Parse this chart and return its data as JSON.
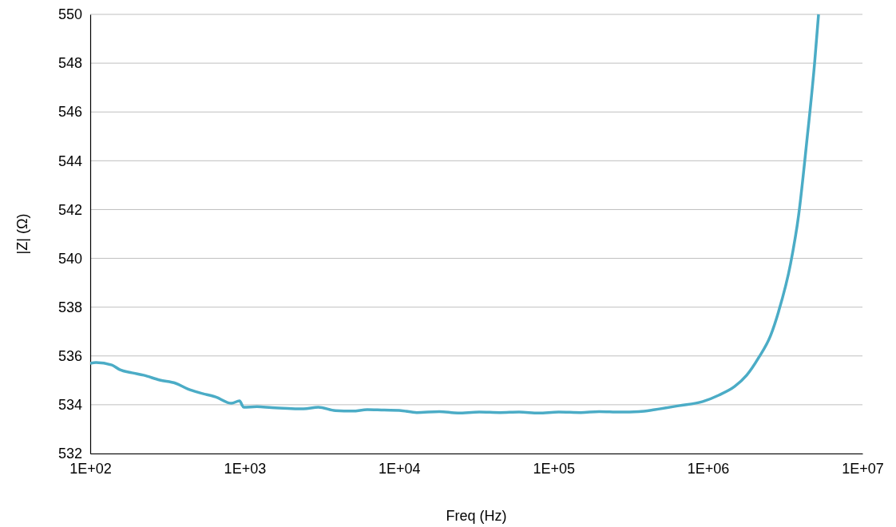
{
  "chart_data": {
    "type": "line",
    "xlabel": "Freq (Hz)",
    "ylabel": "|Z| (Ω)",
    "log": "x",
    "grid": "y",
    "marker": "none",
    "line_style": "solid",
    "xlim": [
      100,
      10000000
    ],
    "ylim": [
      532,
      550
    ],
    "xticks": [
      {
        "value": 100,
        "label": "1E+02"
      },
      {
        "value": 1000,
        "label": "1E+03"
      },
      {
        "value": 10000,
        "label": "1E+04"
      },
      {
        "value": 100000,
        "label": "1E+05"
      },
      {
        "value": 1000000,
        "label": "1E+06"
      },
      {
        "value": 10000000,
        "label": "1E+07"
      }
    ],
    "yticks": [
      532,
      534,
      536,
      538,
      540,
      542,
      544,
      546,
      548,
      550
    ],
    "series": [
      {
        "color": "#4bacc6",
        "x": [
          100,
          109,
          138,
          155,
          186,
          222,
          282,
          357,
          428,
          511,
          649,
          822,
          926,
          984,
          1200,
          1493,
          1900,
          2404,
          3000,
          3865,
          5000,
          6220,
          8000,
          10020,
          13000,
          18200,
          24000,
          33000,
          45000,
          59800,
          80000,
          108000,
          150000,
          197000,
          270000,
          357000,
          453000,
          647000,
          925000,
          1172000,
          1489000,
          1780000,
          2128000,
          2543000,
          2864000,
          3426000,
          3858000,
          4345000,
          4893000,
          5196000
        ],
        "values": [
          535.7,
          535.73,
          535.63,
          535.44,
          535.31,
          535.21,
          535.01,
          534.88,
          534.65,
          534.49,
          534.32,
          534.06,
          534.16,
          533.9,
          533.92,
          533.88,
          533.85,
          533.83,
          533.9,
          533.76,
          533.74,
          533.8,
          533.78,
          533.77,
          533.68,
          533.72,
          533.66,
          533.7,
          533.68,
          533.7,
          533.66,
          533.7,
          533.68,
          533.72,
          533.7,
          533.72,
          533.8,
          533.96,
          534.13,
          534.39,
          534.75,
          535.21,
          535.93,
          536.84,
          537.82,
          539.79,
          541.75,
          544.7,
          547.97,
          550
        ]
      }
    ]
  }
}
